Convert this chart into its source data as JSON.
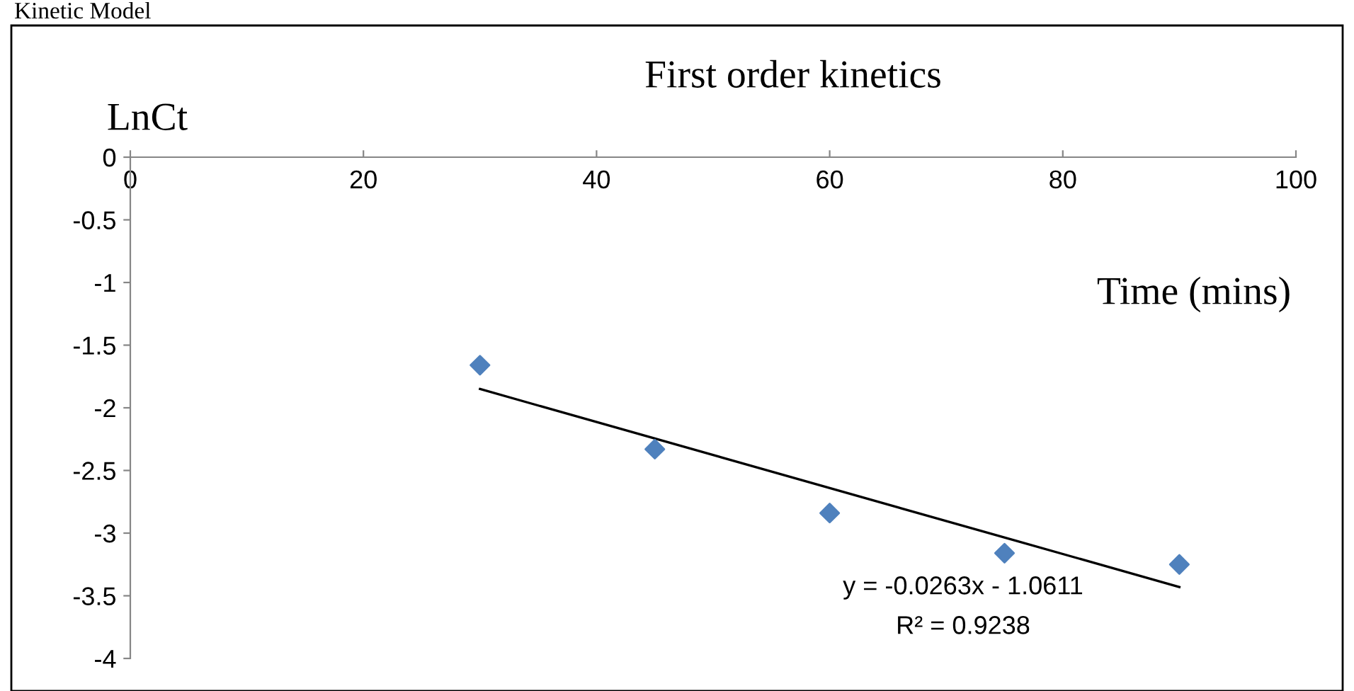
{
  "chart_data": {
    "type": "scatter",
    "title": "First order kinetics",
    "xlabel": "Time (mins)",
    "ylabel": "LnCt",
    "annotations": [
      "Kinetic Model",
      "y = -0.0263x - 1.0611",
      "R² = 0.9238"
    ],
    "xlim": [
      0,
      100
    ],
    "xticks": [
      0,
      20,
      40,
      60,
      80,
      100
    ],
    "ylim": [
      -4,
      0
    ],
    "yticks": [
      -4,
      -3.5,
      -3,
      -2.5,
      -2,
      -1.5,
      -1,
      -0.5,
      0
    ],
    "grid": false,
    "legend": false,
    "series": [
      {
        "color": "#4f81bd",
        "marker": "diamond",
        "x": [
          30,
          45,
          60,
          75,
          90
        ],
        "values": [
          -1.66,
          -2.33,
          -2.84,
          -3.16,
          -3.25
        ]
      },
      {
        "type": "line",
        "color": "#000000",
        "marker": "none",
        "line_style": "solid",
        "x": [
          30,
          90
        ],
        "values": [
          -1.85,
          -3.43
        ]
      }
    ]
  }
}
